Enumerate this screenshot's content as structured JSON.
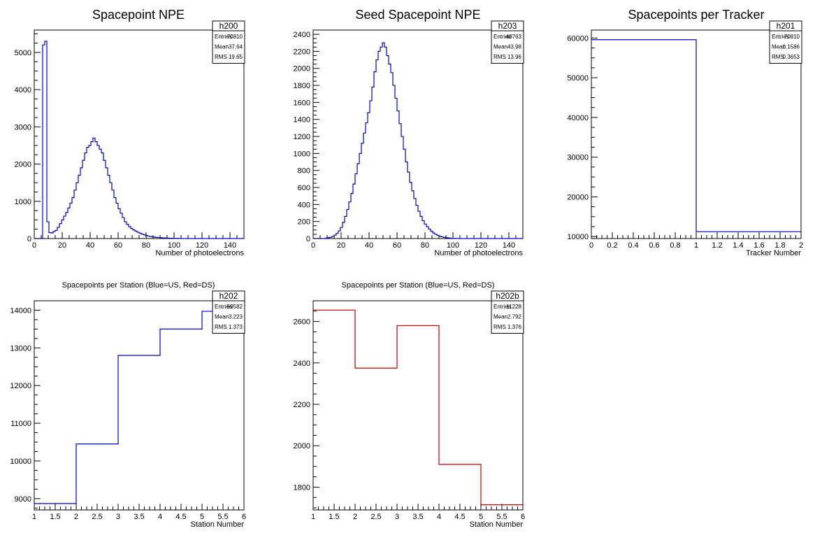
{
  "chart_data": [
    {
      "type": "bar",
      "title": "Spacepoint NPE",
      "xlabel": "Number of photoelectrons",
      "ylabel": "",
      "xlim": [
        0,
        150
      ],
      "ylim": [
        0,
        5600
      ],
      "xticks": [
        0,
        20,
        40,
        60,
        80,
        100,
        120,
        140
      ],
      "yticks": [
        0,
        1000,
        2000,
        3000,
        4000,
        5000
      ],
      "bin_width": 1.5,
      "line_color": "#0000cc",
      "stats": {
        "name": "h200",
        "rows": [
          [
            "Entries",
            "70810"
          ],
          [
            "Mean",
            "37.64"
          ],
          [
            "RMS",
            "19.65"
          ]
        ]
      },
      "values": [
        0,
        0,
        0,
        0,
        5200,
        5300,
        450,
        160,
        150,
        190,
        220,
        300,
        400,
        500,
        600,
        700,
        820,
        950,
        1100,
        1300,
        1500,
        1700,
        1900,
        2100,
        2300,
        2450,
        2500,
        2600,
        2700,
        2600,
        2500,
        2400,
        2300,
        2100,
        1900,
        1700,
        1500,
        1300,
        1100,
        950,
        800,
        680,
        560,
        450,
        380,
        320,
        270,
        230,
        200,
        170,
        145,
        120,
        100,
        80,
        65,
        55,
        45,
        38,
        32,
        27,
        22,
        18,
        15,
        12,
        10,
        8,
        6,
        5,
        4,
        3,
        2,
        1,
        0,
        0,
        0,
        0,
        0,
        0,
        0,
        0,
        0,
        0,
        0,
        0,
        0,
        0,
        0,
        0,
        0,
        0,
        0,
        0,
        0,
        0,
        0,
        0,
        0,
        0,
        0,
        0
      ]
    },
    {
      "type": "bar",
      "title": "Seed Spacepoint NPE",
      "xlabel": "Number of photoelectrons",
      "ylabel": "",
      "xlim": [
        0,
        150
      ],
      "ylim": [
        0,
        2450
      ],
      "xticks": [
        0,
        20,
        40,
        60,
        80,
        100,
        120,
        140
      ],
      "yticks": [
        0,
        200,
        400,
        600,
        800,
        1000,
        1200,
        1400,
        1600,
        1800,
        2000,
        2200,
        2400
      ],
      "bin_width": 1.5,
      "line_color": "#0000cc",
      "stats": {
        "name": "h203",
        "rows": [
          [
            "Entries",
            "48763"
          ],
          [
            "Mean",
            "43.98"
          ],
          [
            "RMS",
            "13.96"
          ]
        ]
      },
      "values": [
        0,
        0,
        0,
        0,
        0,
        0,
        5,
        10,
        15,
        25,
        40,
        60,
        90,
        130,
        190,
        260,
        340,
        430,
        530,
        640,
        760,
        880,
        1000,
        1120,
        1240,
        1360,
        1480,
        1620,
        1780,
        1960,
        2100,
        2200,
        2250,
        2300,
        2250,
        2150,
        2050,
        1950,
        1800,
        1650,
        1500,
        1350,
        1200,
        1050,
        900,
        780,
        660,
        560,
        470,
        390,
        320,
        260,
        210,
        170,
        140,
        110,
        85,
        65,
        50,
        38,
        28,
        20,
        14,
        10,
        7,
        5,
        3,
        2,
        1,
        0,
        0,
        0,
        0,
        0,
        0,
        0,
        0,
        0,
        0,
        0,
        0,
        0,
        0,
        0,
        0,
        0,
        0,
        0,
        0,
        0,
        0,
        0,
        0,
        0,
        0,
        0,
        0,
        0,
        0,
        0
      ]
    },
    {
      "type": "bar",
      "title": "Spacepoints per Tracker",
      "xlabel": "Tracker Number",
      "ylabel": "",
      "xlim": [
        0,
        2
      ],
      "ylim": [
        9500,
        62000
      ],
      "xticks": [
        0,
        0.2,
        0.4,
        0.6,
        0.8,
        1,
        1.2,
        1.4,
        1.6,
        1.8,
        2
      ],
      "yticks": [
        10000,
        20000,
        30000,
        40000,
        50000,
        60000
      ],
      "bin_edges": [
        0,
        1,
        2
      ],
      "line_color": "#0000cc",
      "stats": {
        "name": "h201",
        "rows": [
          [
            "Entries",
            "70810"
          ],
          [
            "Mean",
            "0.1586"
          ],
          [
            "RMS",
            "0.3653"
          ]
        ]
      },
      "values": [
        59582,
        11228
      ]
    },
    {
      "type": "bar",
      "title": "Spacepoints per Station (Blue=US, Red=DS)",
      "xlabel": "Station Number",
      "ylabel": "",
      "xlim": [
        1,
        6
      ],
      "ylim": [
        8700,
        14250
      ],
      "xticks": [
        1,
        1.5,
        2,
        2.5,
        3,
        3.5,
        4,
        4.5,
        5,
        5.5,
        6
      ],
      "yticks": [
        9000,
        10000,
        11000,
        12000,
        13000,
        14000
      ],
      "bin_edges": [
        1,
        2,
        3,
        4,
        5,
        6
      ],
      "line_color": "#0000cc",
      "stats": {
        "name": "h202",
        "rows": [
          [
            "Entries",
            "59582"
          ],
          [
            "Mean",
            "3.223"
          ],
          [
            "RMS",
            "1.373"
          ]
        ]
      },
      "values": [
        8870,
        10450,
        12800,
        13500,
        13970
      ]
    },
    {
      "type": "bar",
      "title": "Spacepoints per Station (Blue=US, Red=DS)",
      "xlabel": "Station Number",
      "ylabel": "",
      "xlim": [
        1,
        6
      ],
      "ylim": [
        1690,
        2700
      ],
      "xticks": [
        1,
        1.5,
        2,
        2.5,
        3,
        3.5,
        4,
        4.5,
        5,
        5.5,
        6
      ],
      "yticks": [
        1800,
        2000,
        2200,
        2400,
        2600
      ],
      "bin_edges": [
        1,
        2,
        3,
        4,
        5,
        6
      ],
      "line_color": "#cc0000",
      "stats": {
        "name": "h202b",
        "rows": [
          [
            "Entries",
            "11228"
          ],
          [
            "Mean",
            "2.792"
          ],
          [
            "RMS",
            "1.376"
          ]
        ]
      },
      "values": [
        2655,
        2375,
        2580,
        1910,
        1715
      ]
    }
  ]
}
